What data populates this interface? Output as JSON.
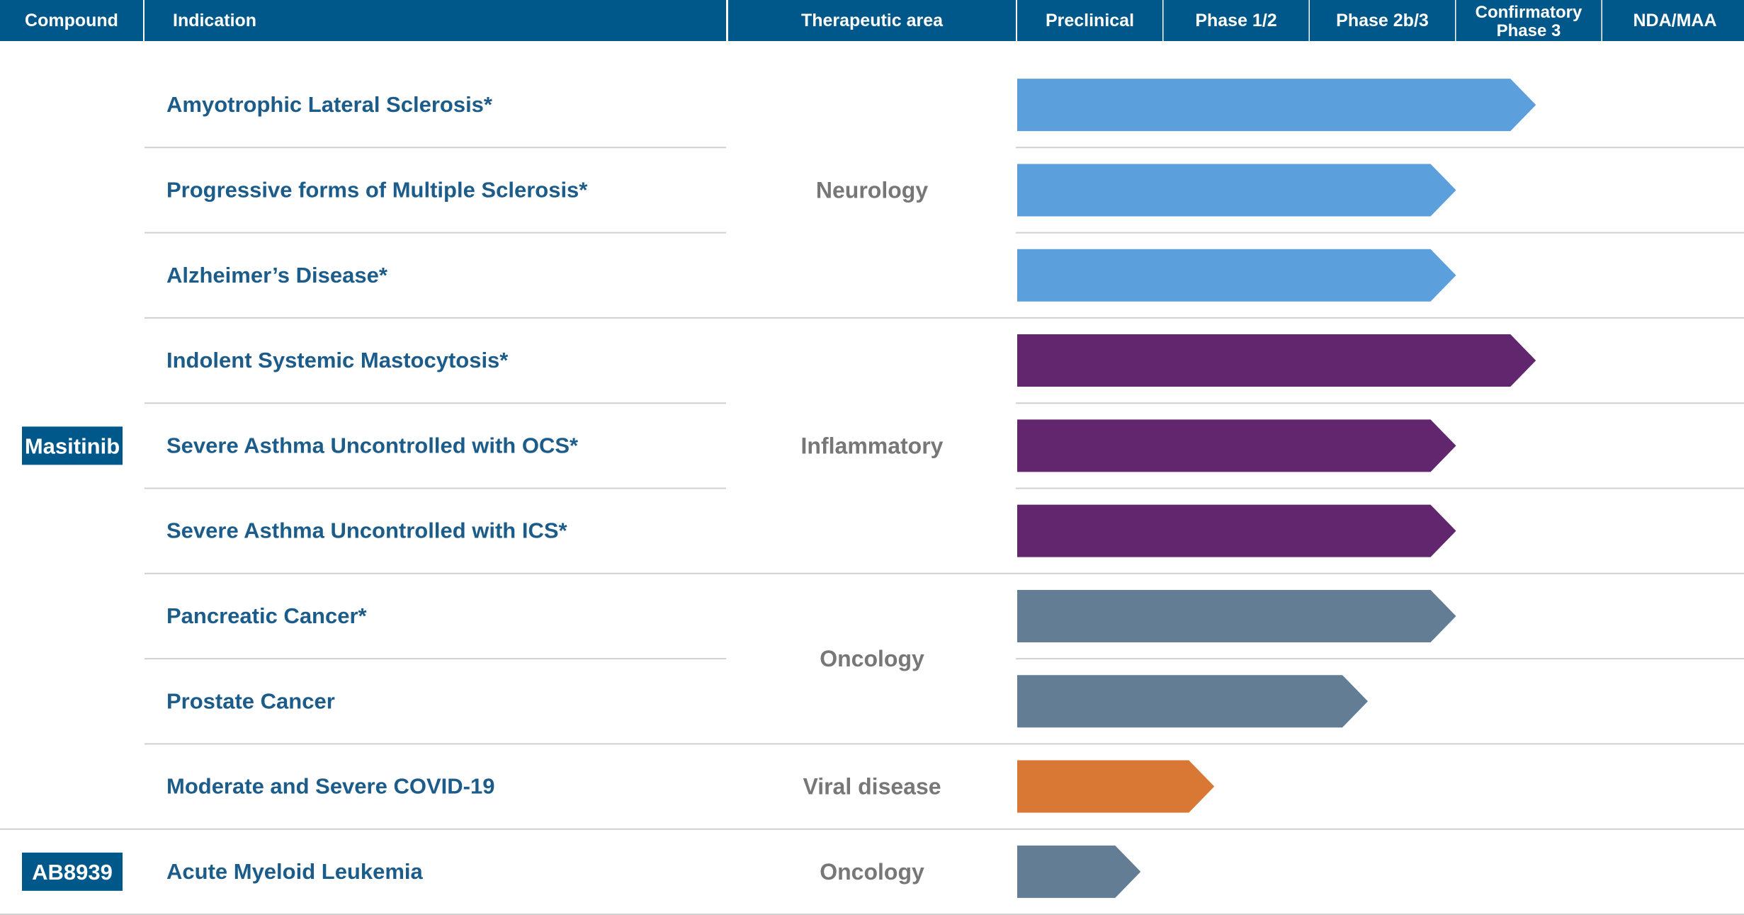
{
  "chart_data": {
    "type": "pipeline",
    "stage_columns": [
      "Preclinical",
      "Phase 1/2",
      "Phase 2b/3",
      "Confirmatory Phase 3",
      "NDA/MAA"
    ],
    "header": {
      "compound": "Compound",
      "indication": "Indication",
      "therapeutic_area": "Therapeutic area",
      "stages": [
        {
          "lines": [
            "Preclinical"
          ]
        },
        {
          "lines": [
            "Phase 1/2"
          ]
        },
        {
          "lines": [
            "Phase 2b/3"
          ]
        },
        {
          "lines": [
            "Confirmatory",
            "Phase 3"
          ]
        },
        {
          "lines": [
            "NDA/MAA"
          ]
        }
      ]
    },
    "colors": {
      "header": "#00578a",
      "label_text": "#1c5c8a",
      "area_text": "#777777",
      "divider": "#d0d0d0",
      "Neurology": "#5b9fdc",
      "Inflammatory": "#62266e",
      "Oncology": "#627d94",
      "Viral disease": "#d97834"
    },
    "compounds": [
      {
        "name": "Masitinib",
        "row_span": [
          0,
          8
        ]
      },
      {
        "name": "AB8939",
        "row_span": [
          9,
          9
        ]
      }
    ],
    "areas": [
      {
        "name": "Neurology",
        "row_span": [
          0,
          2
        ]
      },
      {
        "name": "Inflammatory",
        "row_span": [
          3,
          5
        ]
      },
      {
        "name": "Oncology",
        "row_span": [
          6,
          7
        ]
      },
      {
        "name": "Viral disease",
        "row_span": [
          8,
          8
        ]
      },
      {
        "name": "Oncology",
        "row_span": [
          9,
          9
        ]
      }
    ],
    "programs": [
      {
        "indication": "Amyotrophic Lateral Sclerosis*",
        "area": "Neurology",
        "progress": 3.55
      },
      {
        "indication": "Progressive forms of Multiple Sclerosis*",
        "area": "Neurology",
        "progress": 3.0
      },
      {
        "indication": "Alzheimer’s Disease*",
        "area": "Neurology",
        "progress": 3.0
      },
      {
        "indication": "Indolent Systemic Mastocytosis*",
        "area": "Inflammatory",
        "progress": 3.55
      },
      {
        "indication": "Severe Asthma Uncontrolled with OCS*",
        "area": "Inflammatory",
        "progress": 3.0
      },
      {
        "indication": "Severe Asthma Uncontrolled with ICS*",
        "area": "Inflammatory",
        "progress": 3.0
      },
      {
        "indication": "Pancreatic Cancer*",
        "area": "Oncology",
        "progress": 3.0
      },
      {
        "indication": "Prostate Cancer",
        "area": "Oncology",
        "progress": 2.4
      },
      {
        "indication": "Moderate and Severe COVID-19",
        "area": "Viral disease",
        "progress": 1.35
      },
      {
        "indication": "Acute Myeloid Leukemia",
        "area": "Oncology",
        "progress": 0.85
      }
    ]
  }
}
